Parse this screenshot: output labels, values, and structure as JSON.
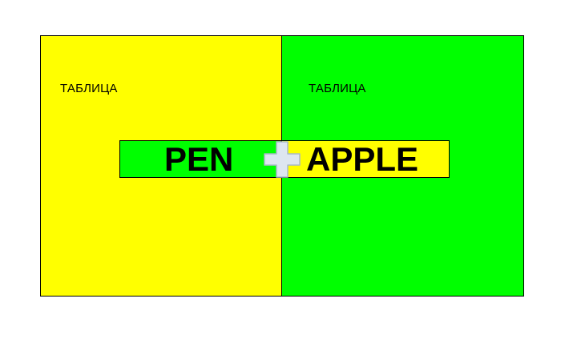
{
  "colors": {
    "yellow": "#ffff00",
    "green": "#00ff00",
    "plus_fill": "#dde6f0",
    "plus_stroke": "#a9b8c8"
  },
  "left_panel": {
    "label": "ТАБЛИЦА"
  },
  "right_panel": {
    "label": "ТАБЛИЦА"
  },
  "band": {
    "left_text": "PEN",
    "right_text": "APPLE"
  },
  "plus": {
    "icon": "plus-icon"
  }
}
